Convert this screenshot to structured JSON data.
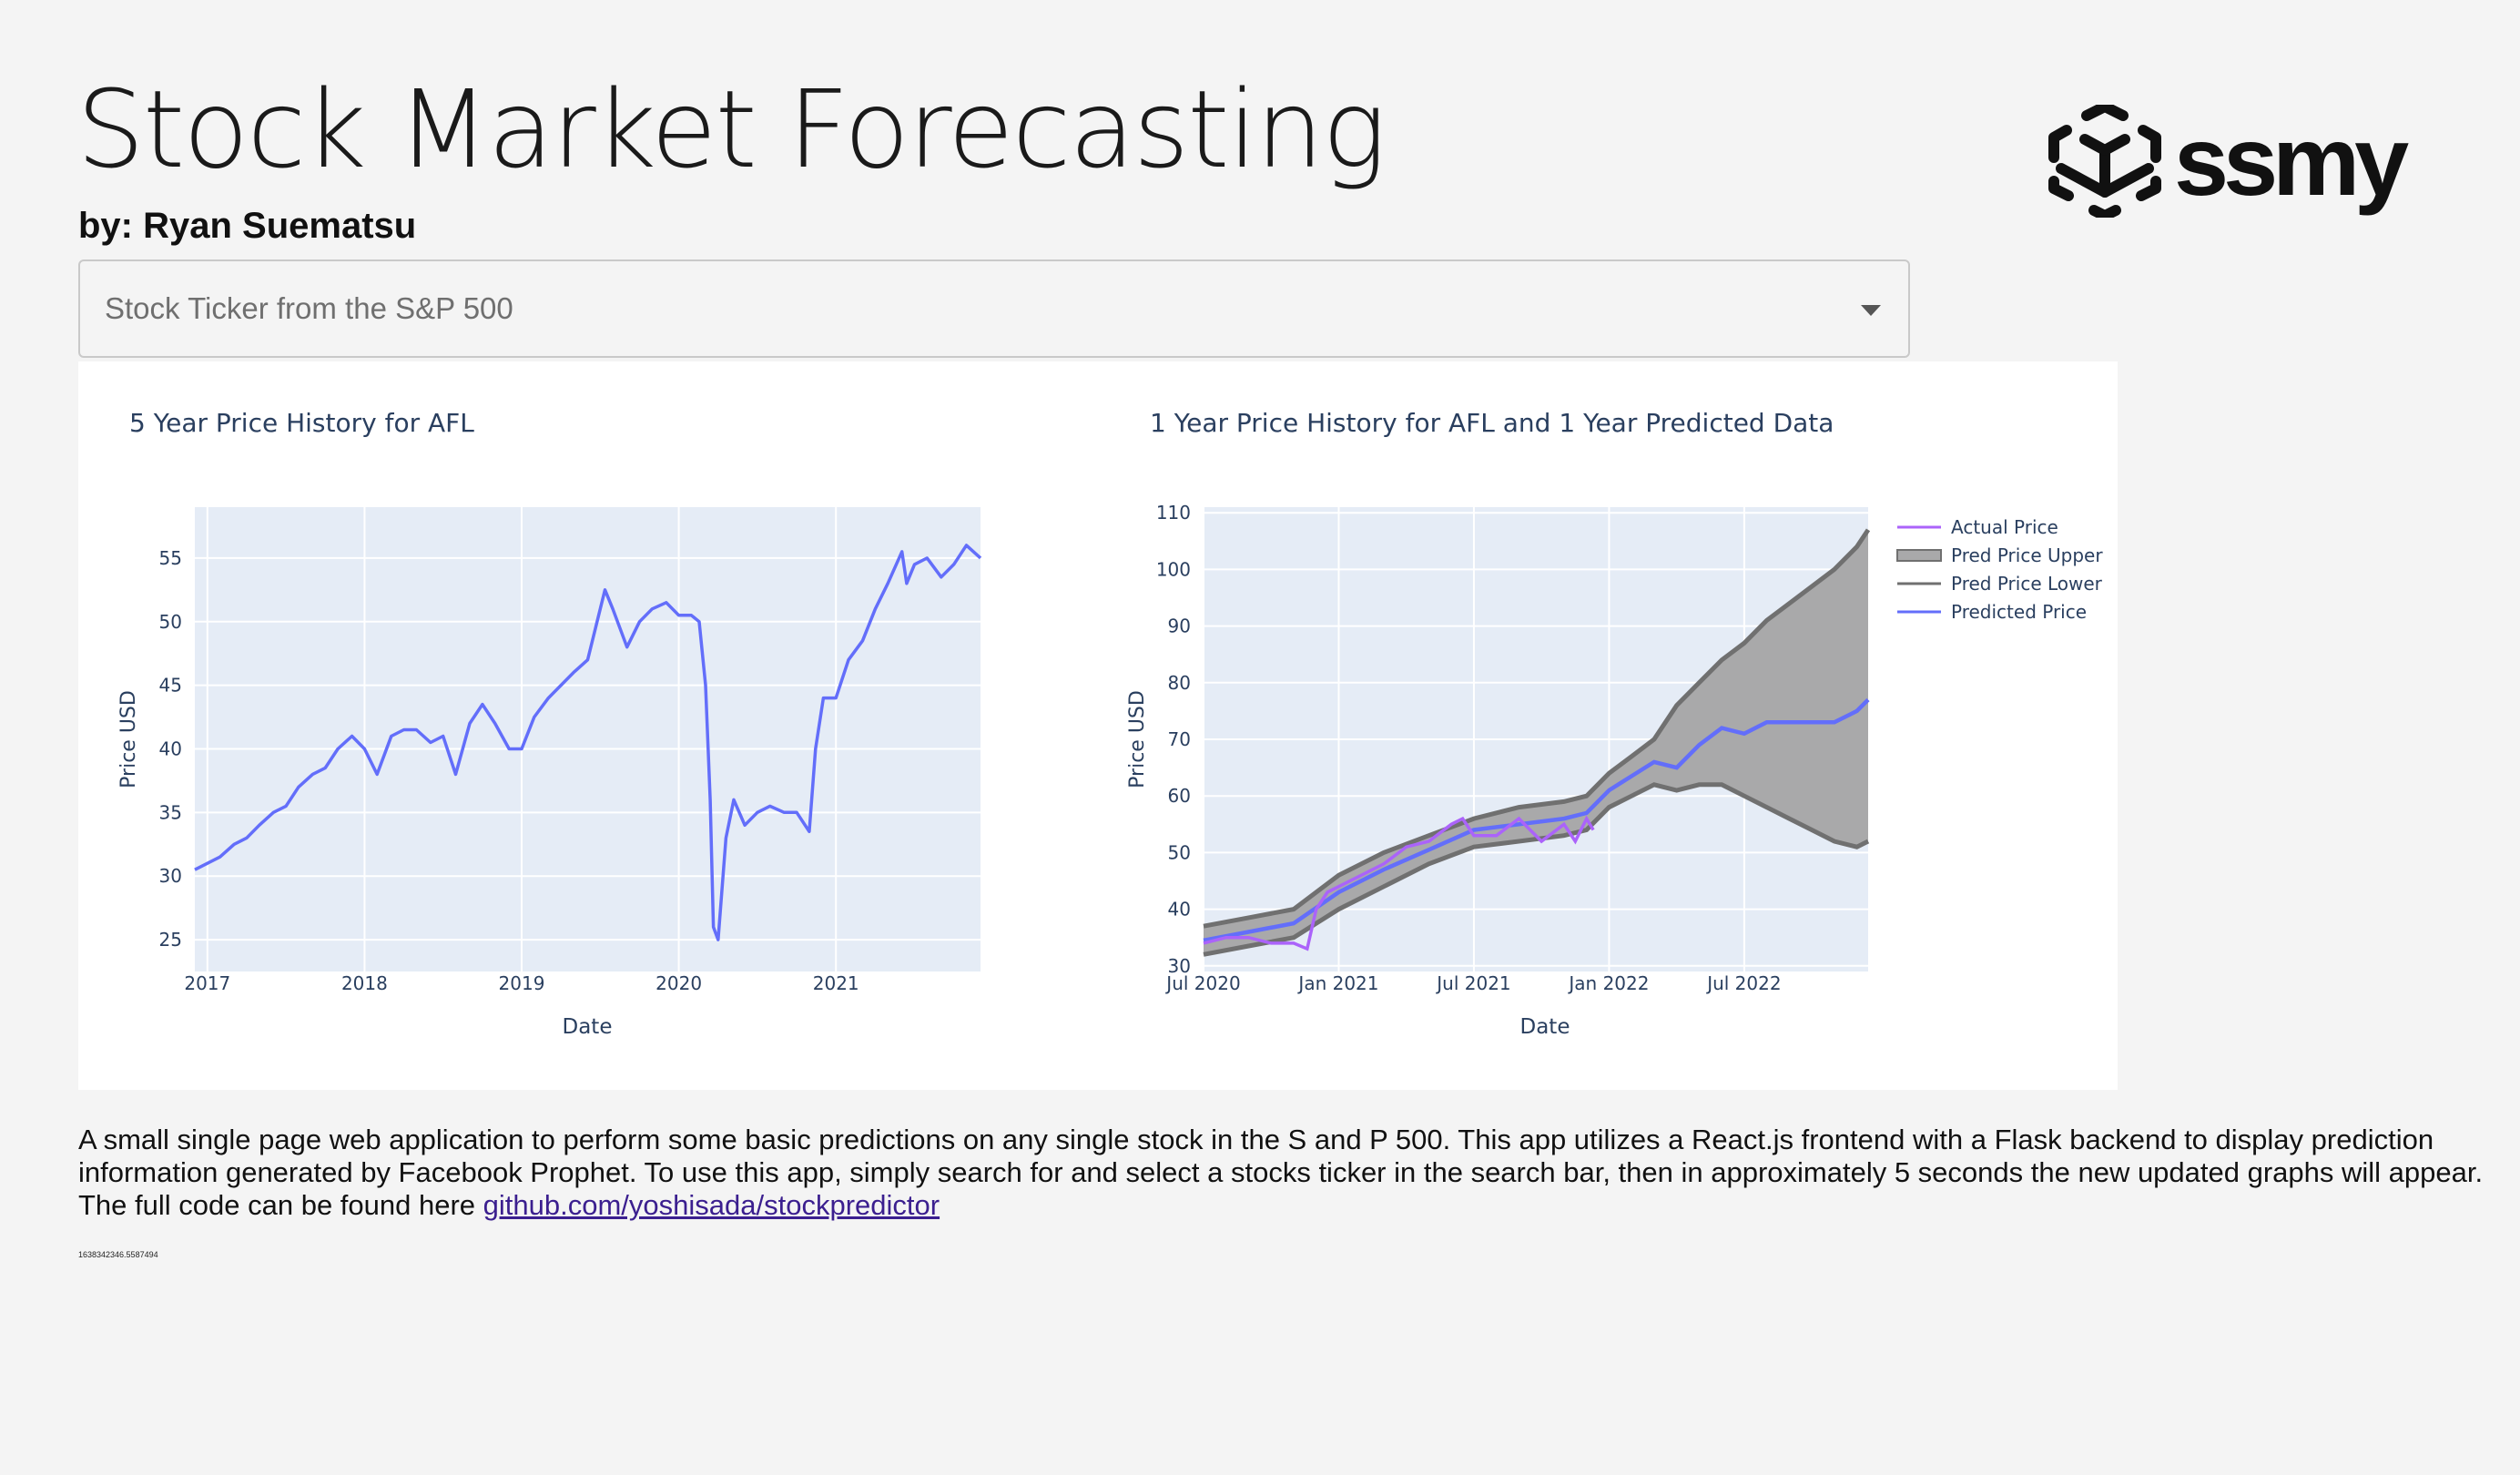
{
  "header": {
    "title": "Stock Market Forecasting",
    "byline": "by: Ryan Suematsu",
    "logo_text": "ssmy"
  },
  "search": {
    "placeholder": "Stock Ticker from the S&P 500",
    "icon": "chevron-down-icon"
  },
  "description": {
    "text": "A small single page web application to perform some basic predictions on any single stock in the S and P 500. This app utilizes a React.js frontend with a Flask backend to display prediction information generated by Facebook Prophet. To use this app, simply search for and select a stocks ticker in the search bar, then in approximately 5 seconds the new updated graphs will appear. The full code can be found here ",
    "link_text": "github.com/yoshisada/stockpredictor"
  },
  "timestamp": "1638342346.5587494",
  "colors": {
    "background": "#f4f4f4",
    "plot_bg": "#e5ecf6",
    "history_line": "#636efa",
    "actual_price": "#ab63fa",
    "band_fill": "#a9a9aa",
    "band_line": "#707070",
    "predicted": "#636efa",
    "axis_text": "#2a3f5f"
  },
  "chart_data": [
    {
      "type": "line",
      "title": "5 Year Price History for AFL",
      "xlabel": "Date",
      "ylabel": "Price USD",
      "xlim": [
        2016.92,
        2021.92
      ],
      "ylim": [
        22.5,
        59
      ],
      "x_ticks": [
        "2017",
        "2018",
        "2019",
        "2020",
        "2021"
      ],
      "x_tick_values": [
        2017,
        2018,
        2019,
        2020,
        2021
      ],
      "y_ticks": [
        25,
        30,
        35,
        40,
        45,
        50,
        55
      ],
      "grid": true,
      "series": [
        {
          "x": [
            2016.92,
            2017.0,
            2017.08,
            2017.17,
            2017.25,
            2017.33,
            2017.42,
            2017.5,
            2017.58,
            2017.67,
            2017.75,
            2017.83,
            2017.92,
            2018.0,
            2018.08,
            2018.17,
            2018.25,
            2018.33,
            2018.42,
            2018.5,
            2018.58,
            2018.67,
            2018.75,
            2018.83,
            2018.92,
            2019.0,
            2019.08,
            2019.17,
            2019.25,
            2019.33,
            2019.42,
            2019.5,
            2019.53,
            2019.58,
            2019.67,
            2019.75,
            2019.83,
            2019.92,
            2020.0,
            2020.08,
            2020.13,
            2020.17,
            2020.2,
            2020.22,
            2020.25,
            2020.3,
            2020.35,
            2020.42,
            2020.5,
            2020.58,
            2020.67,
            2020.75,
            2020.83,
            2020.87,
            2020.92,
            2021.0,
            2021.08,
            2021.17,
            2021.25,
            2021.33,
            2021.42,
            2021.45,
            2021.5,
            2021.58,
            2021.67,
            2021.75,
            2021.83,
            2021.92
          ],
          "y": [
            30.5,
            31,
            31.5,
            32.5,
            33,
            34,
            35,
            35.5,
            37,
            38,
            38.5,
            40,
            41,
            40,
            38,
            41,
            41.5,
            41.5,
            40.5,
            41,
            38,
            42,
            43.5,
            42,
            40,
            40,
            42.5,
            44,
            45,
            46,
            47,
            51,
            52.5,
            51,
            48,
            50,
            51,
            51.5,
            50.5,
            50.5,
            50,
            45,
            36,
            26,
            25,
            33,
            36,
            34,
            35,
            35.5,
            35,
            35,
            33.5,
            40,
            44,
            44,
            47,
            48.5,
            51,
            53,
            55.5,
            53,
            54.5,
            55,
            53.5,
            54.5,
            56,
            55
          ]
        }
      ]
    },
    {
      "type": "line",
      "title": "1 Year Price History for AFL and 1 Year Predicted Data",
      "xlabel": "Date",
      "ylabel": "Price USD",
      "xlim": [
        0,
        29.5
      ],
      "ylim": [
        29,
        111
      ],
      "x_ticks": [
        "Jul 2020",
        "Jan 2021",
        "Jul 2021",
        "Jan 2022",
        "Jul 2022"
      ],
      "x_tick_values": [
        0,
        6,
        12,
        18,
        24
      ],
      "x_unit": "months since Jul 2020",
      "y_ticks": [
        30,
        40,
        50,
        60,
        70,
        80,
        90,
        100,
        110
      ],
      "grid": true,
      "legend": "top-right",
      "series": [
        {
          "name": "Actual Price",
          "x": [
            0,
            1,
            2,
            3,
            4,
            4.6,
            5,
            5.5,
            6,
            7,
            8,
            9,
            10,
            11,
            11.5,
            12,
            13,
            14,
            15,
            16,
            16.5,
            17,
            17.3
          ],
          "y": [
            34,
            35,
            35,
            34,
            34,
            33,
            40,
            43,
            44,
            46,
            48,
            51,
            52,
            55,
            56,
            53,
            53,
            56,
            52,
            55,
            52,
            56,
            54
          ]
        },
        {
          "name": "Pred Price Upper",
          "x": [
            0,
            2,
            4,
            6,
            8,
            10,
            12,
            14,
            16,
            17,
            18,
            19,
            20,
            21,
            22,
            23,
            24,
            25,
            26,
            27,
            28,
            29,
            29.5
          ],
          "y": [
            37,
            38.5,
            40,
            46,
            50,
            53,
            56,
            58,
            59,
            60,
            64,
            67,
            70,
            76,
            80,
            84,
            87,
            91,
            94,
            97,
            100,
            104,
            107
          ]
        },
        {
          "name": "Pred Price Lower",
          "x": [
            0,
            2,
            4,
            6,
            8,
            10,
            12,
            14,
            16,
            17,
            18,
            19,
            20,
            21,
            22,
            23,
            24,
            25,
            26,
            27,
            28,
            29,
            29.5
          ],
          "y": [
            32,
            33.5,
            35,
            40,
            44,
            48,
            51,
            52,
            53,
            54,
            58,
            60,
            62,
            61,
            62,
            62,
            60,
            58,
            56,
            54,
            52,
            51,
            52
          ]
        },
        {
          "name": "Predicted Price",
          "x": [
            0,
            2,
            4,
            6,
            8,
            10,
            12,
            14,
            16,
            17,
            18,
            19,
            20,
            21,
            22,
            23,
            24,
            25,
            26,
            27,
            28,
            29,
            29.5
          ],
          "y": [
            34.5,
            36,
            37.5,
            43,
            47,
            50.5,
            54,
            55,
            56,
            57,
            61,
            63.5,
            66,
            65,
            69,
            72,
            71,
            73,
            73,
            73,
            73,
            75,
            77
          ]
        }
      ]
    }
  ]
}
